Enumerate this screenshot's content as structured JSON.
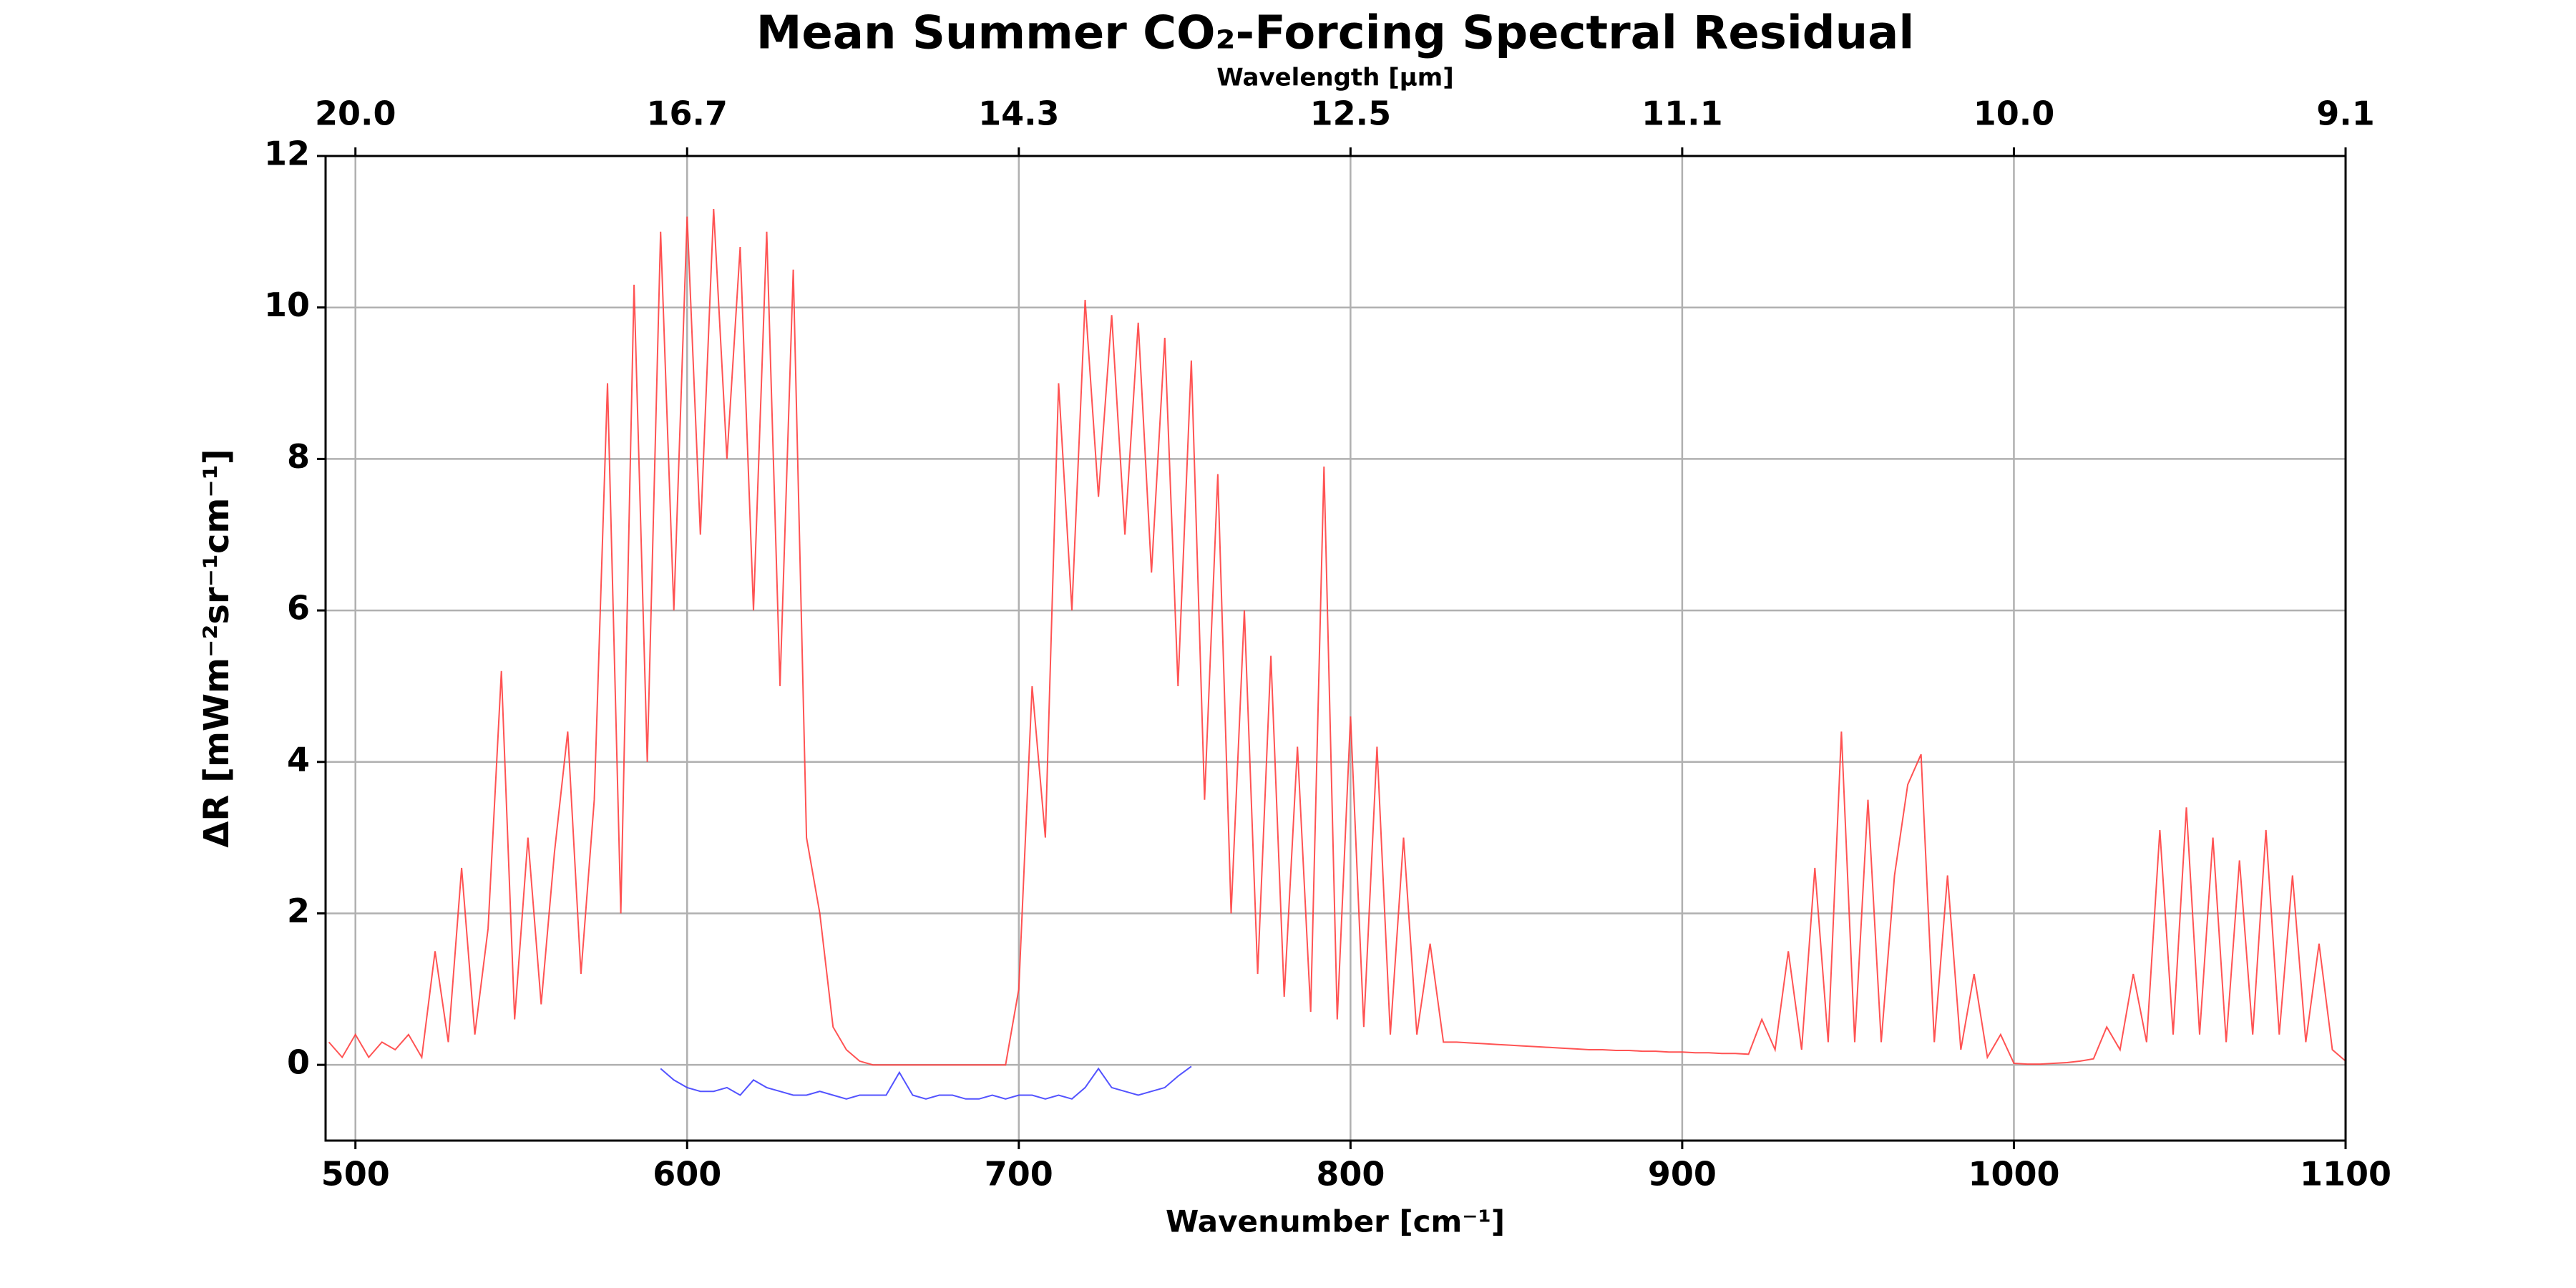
{
  "chart_data": {
    "type": "line",
    "title": "Mean Summer CO₂-Forcing Spectral Residual",
    "x_label": "Wavenumber [cm⁻¹]",
    "y_label": "ΔR [mWm⁻²sr⁻¹cm⁻¹]",
    "x2_label": "Wavelength [μm]",
    "xlim": [
      491,
      1100
    ],
    "ylim": [
      -1,
      12
    ],
    "xticks": [
      500,
      600,
      700,
      800,
      900,
      1000,
      1100
    ],
    "yticks": [
      0,
      2,
      4,
      6,
      8,
      10,
      12
    ],
    "x2ticks": [
      {
        "value": 500,
        "label": "20.0"
      },
      {
        "value": 600,
        "label": "16.7"
      },
      {
        "value": 700,
        "label": "14.3"
      },
      {
        "value": 800,
        "label": "12.5"
      },
      {
        "value": 900,
        "label": "11.1"
      },
      {
        "value": 1000,
        "label": "10.0"
      },
      {
        "value": 1100,
        "label": "9.1"
      }
    ],
    "grid": true,
    "series": [
      {
        "color": "#ff4040",
        "x": [
          492,
          496,
          500,
          504,
          508,
          512,
          516,
          520,
          524,
          528,
          532,
          536,
          540,
          544,
          548,
          552,
          556,
          560,
          564,
          568,
          572,
          576,
          580,
          584,
          588,
          592,
          596,
          600,
          604,
          608,
          612,
          616,
          620,
          624,
          628,
          632,
          636,
          640,
          644,
          648,
          652,
          656,
          660,
          664,
          668,
          672,
          676,
          680,
          684,
          688,
          692,
          696,
          700,
          704,
          708,
          712,
          716,
          720,
          724,
          728,
          732,
          736,
          740,
          744,
          748,
          752,
          756,
          760,
          764,
          768,
          772,
          776,
          780,
          784,
          788,
          792,
          796,
          800,
          804,
          808,
          812,
          816,
          820,
          824,
          828,
          832,
          836,
          840,
          844,
          848,
          852,
          856,
          860,
          864,
          868,
          872,
          876,
          880,
          884,
          888,
          892,
          896,
          900,
          904,
          908,
          912,
          916,
          920,
          924,
          928,
          932,
          936,
          940,
          944,
          948,
          952,
          956,
          960,
          964,
          968,
          972,
          976,
          980,
          984,
          988,
          992,
          996,
          1000,
          1004,
          1008,
          1012,
          1016,
          1020,
          1024,
          1028,
          1032,
          1036,
          1040,
          1044,
          1048,
          1052,
          1056,
          1060,
          1064,
          1068,
          1072,
          1076,
          1080,
          1084,
          1088,
          1092,
          1096,
          1100
        ],
        "values": [
          0.3,
          0.1,
          0.4,
          0.1,
          0.3,
          0.2,
          0.4,
          0.1,
          1.5,
          0.3,
          2.6,
          0.4,
          1.8,
          5.2,
          0.6,
          3.0,
          0.8,
          2.8,
          4.4,
          1.2,
          3.5,
          9.0,
          2.0,
          10.3,
          4.0,
          11.0,
          6.0,
          11.2,
          7.0,
          11.3,
          8.0,
          10.8,
          6.0,
          11.0,
          5.0,
          10.5,
          3.0,
          2.0,
          0.5,
          0.2,
          0.05,
          0,
          0,
          0,
          0,
          0,
          0,
          0,
          0,
          0,
          0,
          0,
          1.0,
          5.0,
          3.0,
          9.0,
          6.0,
          10.1,
          7.5,
          9.9,
          7.0,
          9.8,
          6.5,
          9.6,
          5.0,
          9.3,
          3.5,
          7.8,
          2.0,
          6.0,
          1.2,
          5.4,
          0.9,
          4.2,
          0.7,
          7.9,
          0.6,
          4.6,
          0.5,
          4.2,
          0.4,
          3.0,
          0.4,
          1.6,
          0.3,
          0.3,
          0.29,
          0.28,
          0.27,
          0.26,
          0.25,
          0.24,
          0.23,
          0.22,
          0.21,
          0.2,
          0.2,
          0.19,
          0.19,
          0.18,
          0.18,
          0.17,
          0.17,
          0.16,
          0.16,
          0.15,
          0.15,
          0.14,
          0.6,
          0.2,
          1.5,
          0.2,
          2.6,
          0.3,
          4.4,
          0.3,
          3.5,
          0.3,
          2.5,
          3.7,
          4.1,
          0.3,
          2.5,
          0.2,
          1.2,
          0.1,
          0.4,
          0.02,
          0.01,
          0.01,
          0.02,
          0.03,
          0.05,
          0.08,
          0.5,
          0.2,
          1.2,
          0.3,
          3.1,
          0.4,
          3.4,
          0.4,
          3.0,
          0.3,
          2.7,
          0.4,
          3.1,
          0.4,
          2.5,
          0.3,
          1.6,
          0.2,
          0.05
        ]
      },
      {
        "color": "#4040ff",
        "x": [
          592,
          596,
          600,
          604,
          608,
          612,
          616,
          620,
          624,
          628,
          632,
          636,
          640,
          644,
          648,
          652,
          656,
          660,
          664,
          668,
          672,
          676,
          680,
          684,
          688,
          692,
          696,
          700,
          704,
          708,
          712,
          716,
          720,
          724,
          728,
          732,
          736,
          740,
          744,
          748,
          752
        ],
        "values": [
          -0.05,
          -0.2,
          -0.3,
          -0.35,
          -0.35,
          -0.3,
          -0.4,
          -0.2,
          -0.3,
          -0.35,
          -0.4,
          -0.4,
          -0.35,
          -0.4,
          -0.45,
          -0.4,
          -0.4,
          -0.4,
          -0.1,
          -0.4,
          -0.45,
          -0.4,
          -0.4,
          -0.45,
          -0.45,
          -0.4,
          -0.45,
          -0.4,
          -0.4,
          -0.45,
          -0.4,
          -0.45,
          -0.3,
          -0.05,
          -0.3,
          -0.35,
          -0.4,
          -0.35,
          -0.3,
          -0.15,
          -0.02
        ]
      }
    ]
  }
}
